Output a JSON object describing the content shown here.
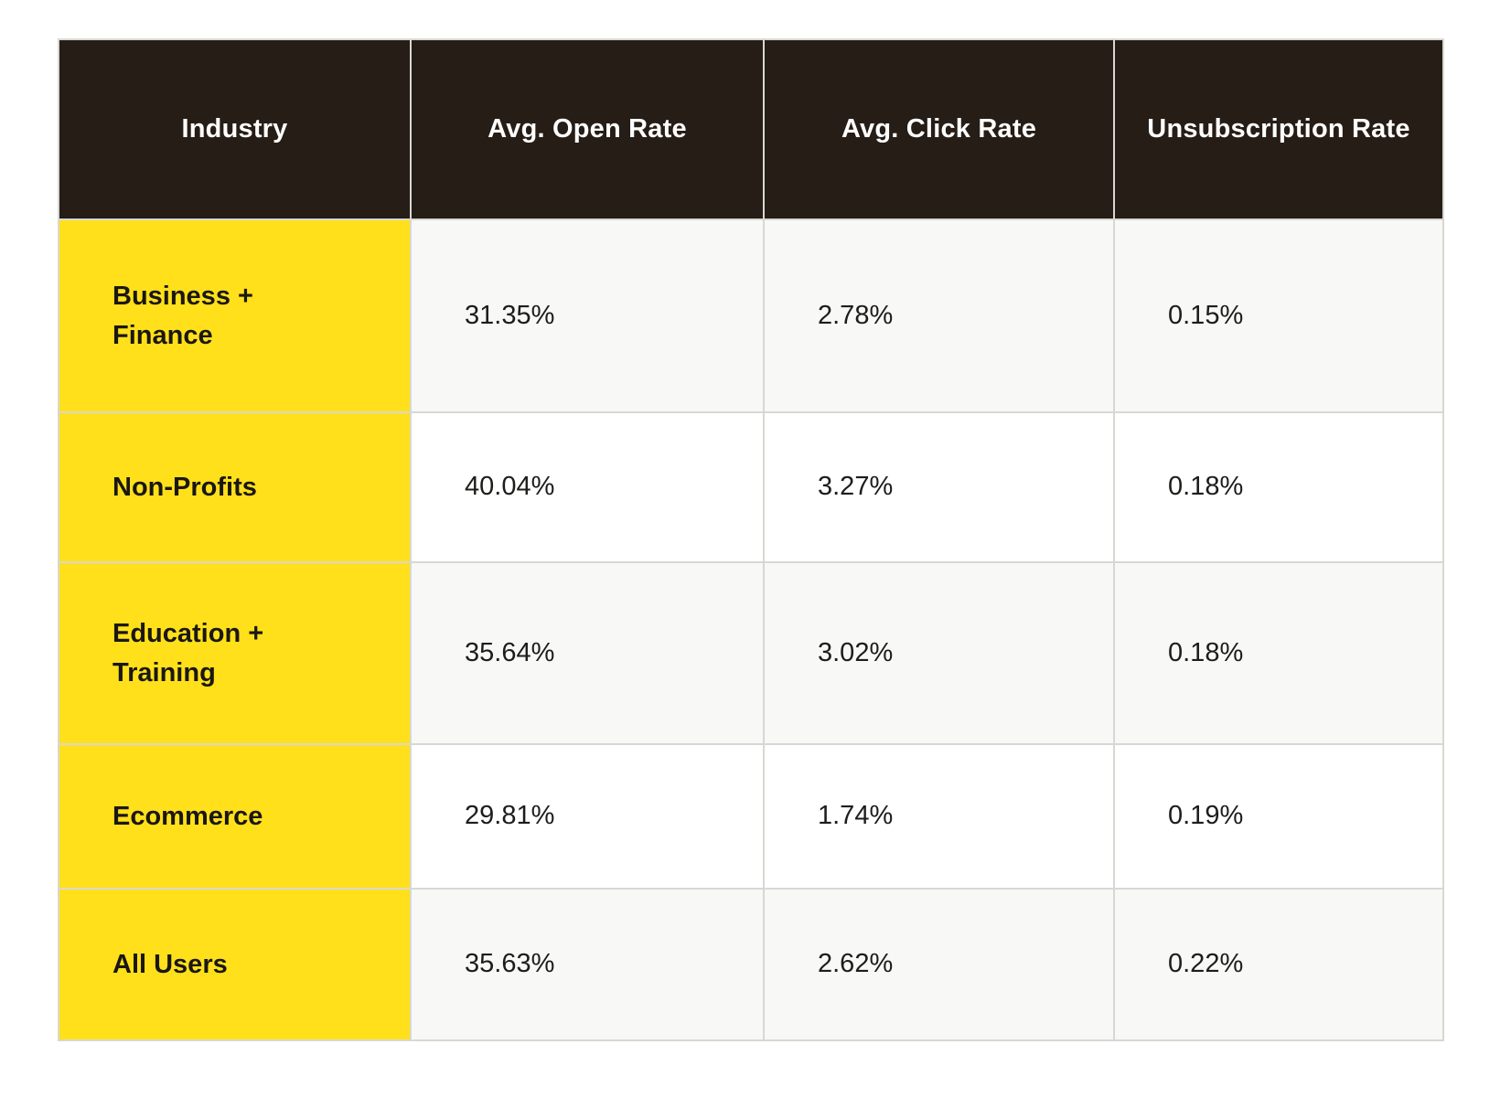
{
  "chart_data": {
    "type": "table",
    "columns": [
      "Industry",
      "Avg. Open Rate",
      "Avg. Click Rate",
      "Unsubscription Rate"
    ],
    "rows": [
      [
        "Business + Finance",
        "31.35%",
        "2.78%",
        "0.15%"
      ],
      [
        "Non-Profits",
        "40.04%",
        "3.27%",
        "0.18%"
      ],
      [
        "Education + Training",
        "35.64%",
        "3.02%",
        "0.18%"
      ],
      [
        "Ecommerce",
        "29.81%",
        "1.74%",
        "0.19%"
      ],
      [
        "All Users",
        "35.63%",
        "2.62%",
        "0.22%"
      ]
    ]
  },
  "colors": {
    "page_bg": "#ffffff",
    "header_bg": "#251d16",
    "header_text": "#ffffff",
    "industry_bg": "#ffe01b",
    "industry_text": "#1a1713",
    "row_bg": "#ffffff",
    "row_alt_bg": "#f8f8f6",
    "border": "#d8d8d2",
    "value_text": "#1e1d1b"
  }
}
